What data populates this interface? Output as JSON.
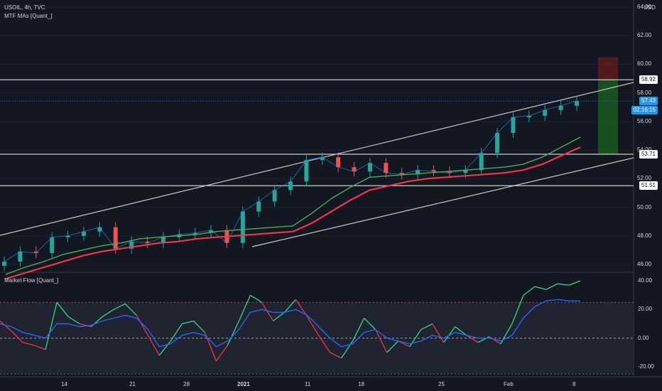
{
  "header": {
    "symbol": "USOIL, 4h, TVC",
    "indicator": "MTF MAs [Quant_]",
    "currency": "USD"
  },
  "oscillator": {
    "title": "Market Flow [Quant_]",
    "ticks": [
      "40.00",
      "20.00",
      "0.00",
      "-20.00"
    ],
    "current_value": "26.4"
  },
  "price_axis": {
    "ticks": [
      "64.00",
      "62.00",
      "60.00",
      "58.00",
      "56.00",
      "54.00",
      "52.00",
      "50.00",
      "48.00",
      "46.00"
    ],
    "tags": [
      {
        "id": "r1",
        "text": "58.92",
        "style": "white"
      },
      {
        "id": "last",
        "text": "57.43",
        "style": "blue"
      },
      {
        "id": "timer",
        "text": "02:16:15",
        "style": "blue"
      },
      {
        "id": "r2",
        "text": "53.71",
        "style": "white"
      },
      {
        "id": "r3",
        "text": "51.51",
        "style": "white"
      }
    ]
  },
  "time_axis": {
    "labels": [
      "14",
      "21",
      "28",
      "2021",
      "11",
      "18",
      "25",
      "Feb",
      "8"
    ]
  },
  "colors": {
    "background": "#131722",
    "up": "#26a69a",
    "down": "#ef5350",
    "ma_fast": "#4caf50",
    "ma_slow": "#f23645",
    "flow_fast": "#2962ff",
    "flow_green": "#26e07f",
    "flow_red": "#f23645",
    "target_zone": "#1b5e20",
    "stop_zone": "#7f1d1d"
  },
  "chart_data": {
    "type": "line",
    "price_range": [
      45.5,
      64.5
    ],
    "oscillator_range": [
      -27,
      46
    ],
    "levels": [
      {
        "name": "resistance",
        "value": 58.92
      },
      {
        "name": "support_1",
        "value": 53.71
      },
      {
        "name": "support_2",
        "value": 51.51
      },
      {
        "name": "last_price",
        "value": 57.43
      }
    ],
    "x_ticks": [
      "14",
      "21",
      "28",
      "2021",
      "11",
      "18",
      "25",
      "Feb",
      "8"
    ],
    "price_series": [
      {
        "x": "Dec 10",
        "y": 46.2
      },
      {
        "x": "Dec 12",
        "y": 46.9
      },
      {
        "x": "Dec 14",
        "y": 46.8
      },
      {
        "x": "Dec 16",
        "y": 47.9
      },
      {
        "x": "Dec 18",
        "y": 48.0
      },
      {
        "x": "Dec 20",
        "y": 48.3
      },
      {
        "x": "Dec 21",
        "y": 48.6
      },
      {
        "x": "Dec 22",
        "y": 47.1
      },
      {
        "x": "Dec 24",
        "y": 47.6
      },
      {
        "x": "Dec 26",
        "y": 47.5
      },
      {
        "x": "Dec 28",
        "y": 47.9
      },
      {
        "x": "Dec 30",
        "y": 48.1
      },
      {
        "x": "Jan 1",
        "y": 48.2
      },
      {
        "x": "Jan 3",
        "y": 48.4
      },
      {
        "x": "Jan 4",
        "y": 47.5
      },
      {
        "x": "Jan 5",
        "y": 49.7
      },
      {
        "x": "Jan 6",
        "y": 50.4
      },
      {
        "x": "Jan 8",
        "y": 51.2
      },
      {
        "x": "Jan 10",
        "y": 51.8
      },
      {
        "x": "Jan 12",
        "y": 53.3
      },
      {
        "x": "Jan 14",
        "y": 53.5
      },
      {
        "x": "Jan 16",
        "y": 52.8
      },
      {
        "x": "Jan 18",
        "y": 52.5
      },
      {
        "x": "Jan 20",
        "y": 53.1
      },
      {
        "x": "Jan 22",
        "y": 52.4
      },
      {
        "x": "Jan 24",
        "y": 52.3
      },
      {
        "x": "Jan 26",
        "y": 52.6
      },
      {
        "x": "Jan 28",
        "y": 52.5
      },
      {
        "x": "Jan 30",
        "y": 52.4
      },
      {
        "x": "Feb 1",
        "y": 52.6
      },
      {
        "x": "Feb 2",
        "y": 53.8
      },
      {
        "x": "Feb 3",
        "y": 55.2
      },
      {
        "x": "Feb 4",
        "y": 56.3
      },
      {
        "x": "Feb 5",
        "y": 56.4
      },
      {
        "x": "Feb 6",
        "y": 56.8
      },
      {
        "x": "Feb 7",
        "y": 57.1
      },
      {
        "x": "Feb 8",
        "y": 57.43
      }
    ],
    "series": [
      {
        "values": [
          45.3,
          45.8,
          46.2,
          46.7,
          47.0,
          47.3,
          47.5,
          47.8,
          47.9,
          48.0,
          48.1,
          48.3,
          48.4,
          48.5,
          48.6,
          48.7,
          49.6,
          50.6,
          51.4,
          52.1,
          52.2,
          52.3,
          52.4,
          52.5,
          52.6,
          52.7,
          52.8,
          53.0,
          53.5,
          54.2,
          54.9
        ]
      },
      {
        "values": [
          45.0,
          45.4,
          45.8,
          46.2,
          46.6,
          46.9,
          47.1,
          47.3,
          47.5,
          47.6,
          47.8,
          47.9,
          48.0,
          48.1,
          48.2,
          48.3,
          48.9,
          49.7,
          50.5,
          51.2,
          51.5,
          51.8,
          52.0,
          52.1,
          52.2,
          52.3,
          52.4,
          52.6,
          53.0,
          53.6,
          54.2
        ]
      },
      {
        "values": [
          12,
          5,
          -3,
          -5,
          -8,
          25,
          15,
          10,
          8,
          15,
          20,
          24,
          16,
          2,
          -12,
          -2,
          10,
          12,
          4,
          -16,
          -5,
          12,
          30,
          25,
          12,
          18,
          27,
          15,
          2,
          -10,
          -14,
          -2,
          14,
          6,
          -10,
          -2,
          -6,
          6,
          10,
          -3,
          8,
          2,
          -3,
          1,
          -4,
          10,
          30,
          36,
          34,
          38,
          37,
          40
        ]
      },
      {
        "values": [
          10,
          8,
          4,
          2,
          0,
          10,
          10,
          8,
          9,
          12,
          14,
          16,
          14,
          6,
          -6,
          -4,
          2,
          4,
          2,
          -6,
          -2,
          6,
          18,
          20,
          18,
          18,
          20,
          16,
          8,
          0,
          -6,
          -4,
          4,
          6,
          0,
          -2,
          -4,
          -2,
          2,
          0,
          4,
          2,
          0,
          0,
          -2,
          2,
          14,
          22,
          26,
          27,
          26,
          26
        ]
      }
    ]
  }
}
